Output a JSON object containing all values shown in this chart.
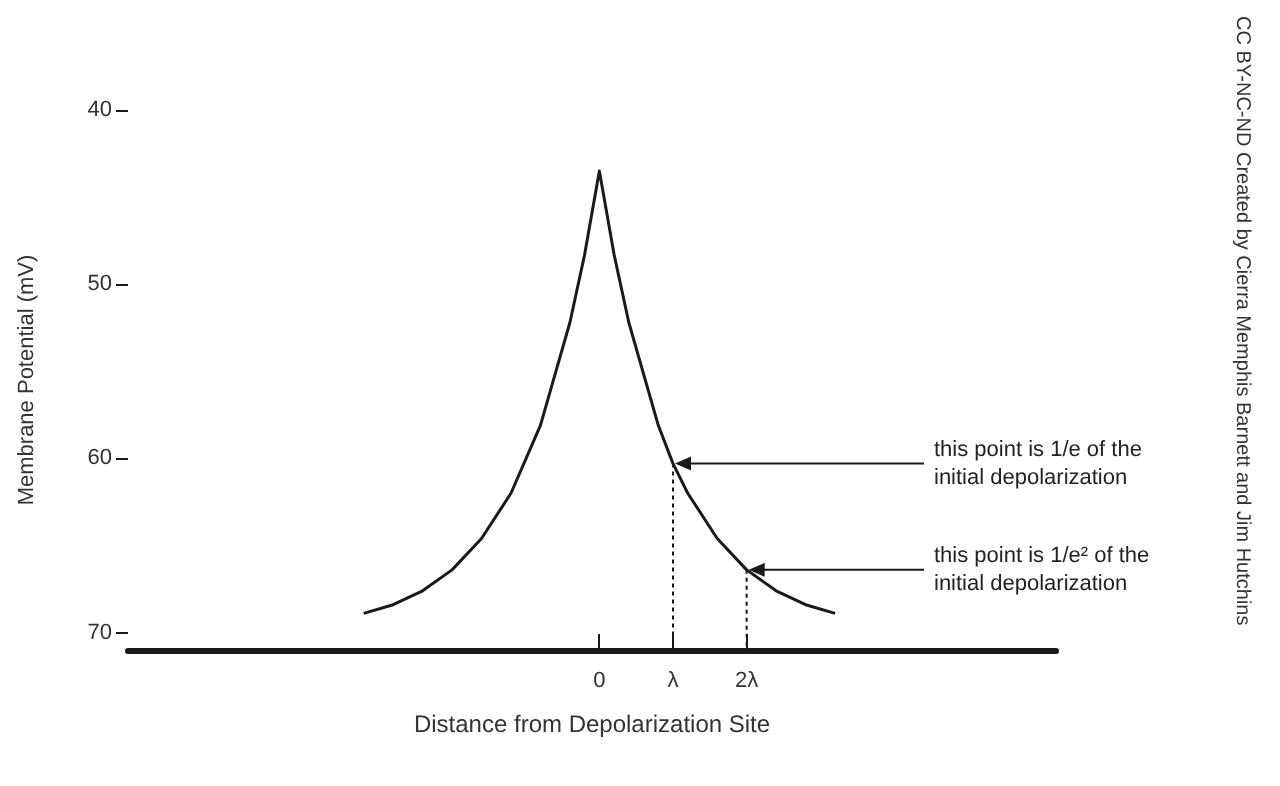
{
  "chart_data": {
    "type": "line",
    "xlabel": "Distance from Depolarization Site",
    "ylabel": "Membrane Potential (mV)",
    "x": [
      -3.2,
      -2.8,
      -2.4,
      -2,
      -1.6,
      -1.2,
      -0.8,
      -0.4,
      -0.2,
      0,
      0.2,
      0.4,
      0.8,
      1,
      1.2,
      1.6,
      2,
      2.4,
      2.8,
      3.2
    ],
    "series": [
      {
        "color": "#1a1a1a",
        "values": [
          68.9,
          68.4,
          67.6,
          66.4,
          64.6,
          62.0,
          58.1,
          52.2,
          48.3,
          43.5,
          48.3,
          52.2,
          58.1,
          60.3,
          62.0,
          64.6,
          66.4,
          67.6,
          68.4,
          68.9
        ]
      }
    ],
    "xlim": [
      -6.4,
      6.2
    ],
    "ylim": [
      71,
      40
    ],
    "xticks": [
      {
        "value": 0,
        "label": "0"
      },
      {
        "value": 1,
        "label": "λ"
      },
      {
        "value": 2,
        "label": "2λ"
      }
    ],
    "yticks": [
      40,
      50,
      60,
      70
    ],
    "grid": false,
    "marker": "none",
    "line_style": "solid",
    "ref_lines": [
      {
        "axis": "x",
        "value": 1,
        "line_style": "dotted",
        "color": "#1a1a1a"
      },
      {
        "axis": "x",
        "value": 2,
        "line_style": "dotted",
        "color": "#1a1a1a"
      }
    ],
    "annotations": [
      {
        "text": "this point is 1/e of the\ninitial depolarization",
        "x": 1,
        "y": 60.3
      },
      {
        "text": "this point is 1/e² of the\ninitial depolarization",
        "x": 2,
        "y": 66.4
      },
      "CC BY-NC-ND Created by Cierra Memphis Barnett and Jim Hutchins"
    ]
  }
}
